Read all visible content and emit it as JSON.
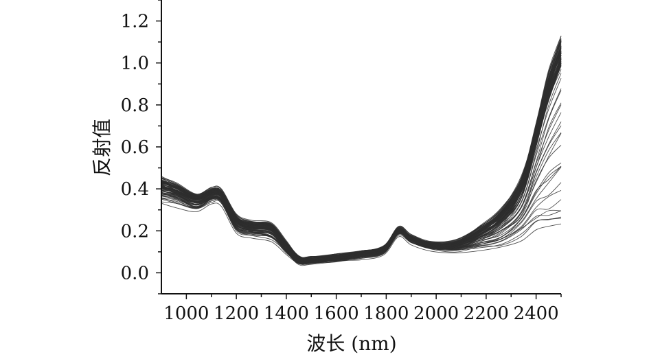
{
  "chart_data": {
    "type": "line",
    "title": "",
    "xlabel": "波长 (nm)",
    "ylabel": "反射值",
    "xlim": [
      900,
      2500
    ],
    "ylim": [
      -0.1,
      1.3
    ],
    "xticks": [
      1000,
      1200,
      1400,
      1600,
      1800,
      2000,
      2200,
      2400
    ],
    "yticks": [
      0.0,
      0.2,
      0.4,
      0.6,
      0.8,
      1.0,
      1.2
    ],
    "xtick_labels": [
      "1000",
      "1200",
      "1400",
      "1600",
      "1800",
      "2000",
      "2200",
      "2400"
    ],
    "ytick_labels": [
      "0.0",
      "0.2",
      "0.4",
      "0.6",
      "0.8",
      "1.0",
      "1.2"
    ],
    "grid": false,
    "legend": "none",
    "line_color": "#2e2e2e",
    "series_count": 90,
    "series": [
      {
        "x": [
          900,
          960,
          1040,
          1100,
          1140,
          1200,
          1260,
          1340,
          1400,
          1450,
          1500,
          1600,
          1700,
          1790,
          1850,
          1900,
          1980,
          2080,
          2180,
          2260,
          2340,
          2400,
          2450,
          2500
        ],
        "values": [
          0.45,
          0.42,
          0.37,
          0.4,
          0.39,
          0.27,
          0.24,
          0.23,
          0.14,
          0.07,
          0.07,
          0.08,
          0.1,
          0.12,
          0.21,
          0.17,
          0.14,
          0.15,
          0.22,
          0.3,
          0.45,
          0.7,
          0.95,
          1.12
        ]
      },
      {
        "x": [
          900,
          960,
          1040,
          1100,
          1140,
          1200,
          1260,
          1340,
          1400,
          1450,
          1500,
          1600,
          1700,
          1790,
          1850,
          1900,
          1980,
          2080,
          2180,
          2260,
          2340,
          2400,
          2450,
          2500
        ],
        "values": [
          0.4,
          0.38,
          0.34,
          0.37,
          0.36,
          0.24,
          0.21,
          0.2,
          0.12,
          0.06,
          0.06,
          0.07,
          0.09,
          0.11,
          0.2,
          0.16,
          0.13,
          0.13,
          0.18,
          0.24,
          0.36,
          0.6,
          0.82,
          0.98
        ]
      },
      {
        "x": [
          900,
          960,
          1040,
          1100,
          1140,
          1200,
          1260,
          1340,
          1400,
          1450,
          1500,
          1600,
          1700,
          1790,
          1850,
          1900,
          1980,
          2080,
          2180,
          2260,
          2340,
          2400,
          2450,
          2500
        ],
        "values": [
          0.36,
          0.35,
          0.31,
          0.35,
          0.34,
          0.21,
          0.19,
          0.17,
          0.1,
          0.05,
          0.05,
          0.06,
          0.08,
          0.1,
          0.19,
          0.15,
          0.12,
          0.11,
          0.13,
          0.15,
          0.2,
          0.28,
          0.3,
          0.32
        ]
      },
      {
        "x": [
          900,
          960,
          1040,
          1100,
          1140,
          1200,
          1260,
          1340,
          1400,
          1450,
          1500,
          1600,
          1700,
          1790,
          1850,
          1900,
          1980,
          2080,
          2180,
          2260,
          2340,
          2400,
          2450,
          2500
        ],
        "values": [
          0.32,
          0.29,
          0.3,
          0.33,
          0.32,
          0.19,
          0.17,
          0.15,
          0.09,
          0.05,
          0.05,
          0.06,
          0.07,
          0.09,
          0.18,
          0.14,
          0.11,
          0.1,
          0.11,
          0.12,
          0.15,
          0.17,
          0.19,
          0.17
        ]
      }
    ]
  }
}
